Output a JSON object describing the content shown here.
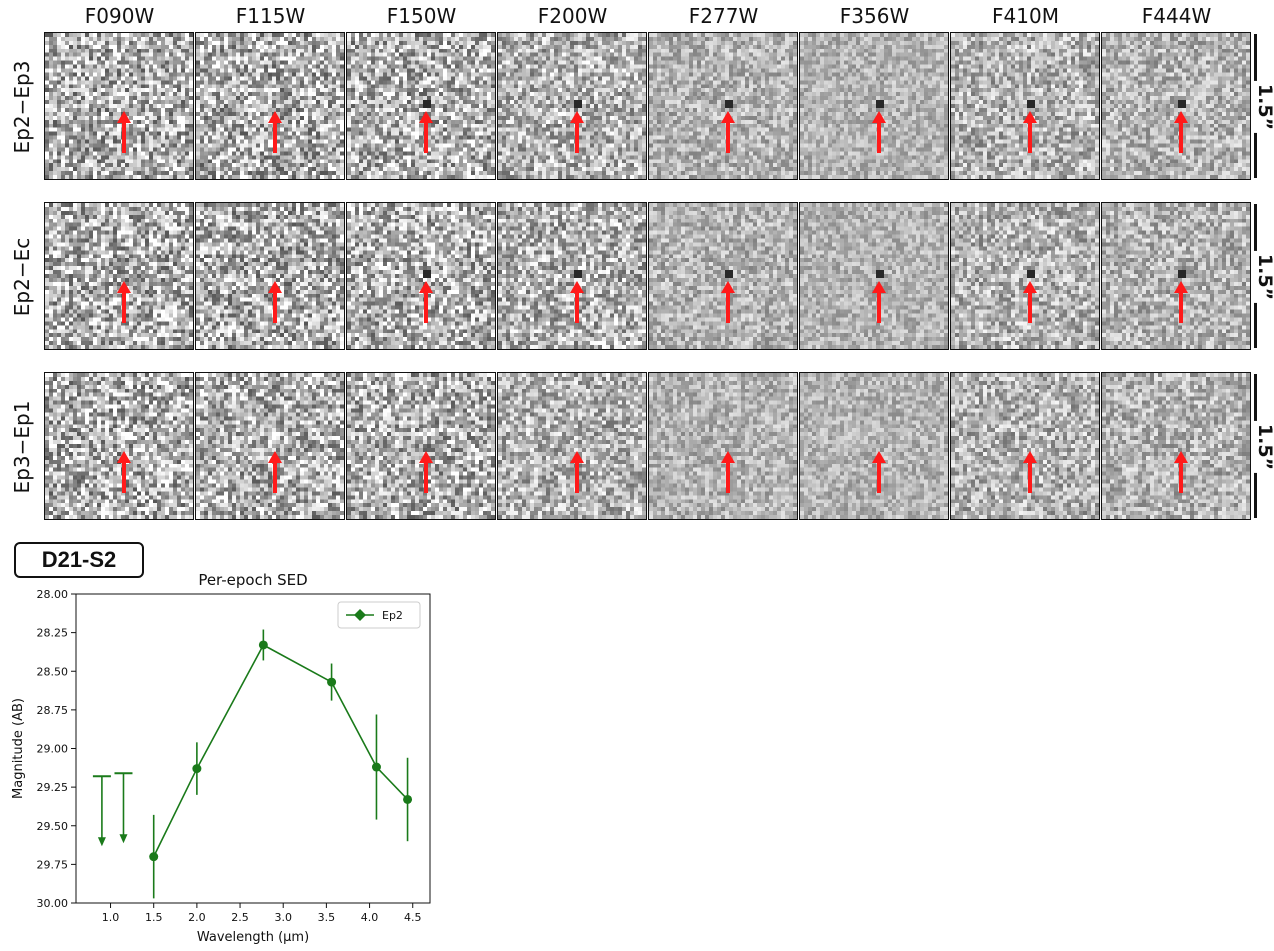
{
  "filters": [
    "F090W",
    "F115W",
    "F150W",
    "F200W",
    "F277W",
    "F356W",
    "F410M",
    "F444W"
  ],
  "rows": [
    {
      "label": "Ep2−Ep3",
      "scale": "1.5”"
    },
    {
      "label": "Ep2−Ec",
      "scale": "1.5”"
    },
    {
      "label": "Ep3−Ep1",
      "scale": "1.5”"
    }
  ],
  "source_name": "D21-S2",
  "colors": {
    "arrow": "#ff1a1a",
    "series": "#1a7a1a"
  },
  "chart_data": {
    "type": "line",
    "title": "Per-epoch SED",
    "xlabel": "Wavelength (μm)",
    "ylabel": "Magnitude (AB)",
    "xlim": [
      0.6,
      4.7
    ],
    "ylim": [
      30.0,
      28.0
    ],
    "y_inverted": true,
    "xticks": [
      "1.0",
      "1.5",
      "2.0",
      "2.5",
      "3.0",
      "3.5",
      "4.0",
      "4.5"
    ],
    "yticks": [
      "28.00",
      "28.25",
      "28.50",
      "28.75",
      "29.00",
      "29.25",
      "29.50",
      "29.75",
      "30.00"
    ],
    "legend": "top-right",
    "series": [
      {
        "name": "Ep2",
        "points": [
          {
            "x": 1.5,
            "y": 29.7,
            "yerr": 0.27
          },
          {
            "x": 2.0,
            "y": 29.13,
            "yerr": 0.17
          },
          {
            "x": 2.77,
            "y": 28.33,
            "yerr": 0.1
          },
          {
            "x": 3.56,
            "y": 28.57,
            "yerr": 0.12
          },
          {
            "x": 4.08,
            "y": 29.12,
            "yerr": 0.34
          },
          {
            "x": 4.44,
            "y": 29.33,
            "yerr": 0.27
          }
        ],
        "upper_limits": [
          {
            "x": 0.9,
            "y": 29.18
          },
          {
            "x": 1.15,
            "y": 29.16
          }
        ]
      }
    ]
  }
}
